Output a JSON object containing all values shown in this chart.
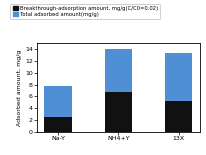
{
  "categories": [
    "Na-Y",
    "NH4+Y",
    "13X"
  ],
  "breakthrough_values": [
    2.5,
    6.8,
    5.3
  ],
  "total_values": [
    7.7,
    14.1,
    13.3
  ],
  "bar_color_breakthrough": "#111111",
  "bar_color_total": "#4f8fd4",
  "legend_label_breakthrough": "Breakthrough-adsorption amount, mg/g(C/C0=0.02)",
  "legend_label_total": "Total adsorbed amount(mg/g)",
  "ylabel": "Adsorbed amount, mg/g",
  "ylim": [
    0,
    15
  ],
  "yticks": [
    0,
    2,
    4,
    6,
    8,
    10,
    12,
    14
  ],
  "legend_fontsize": 3.8,
  "axis_fontsize": 4.5,
  "tick_fontsize": 4.5,
  "bar_width": 0.45,
  "background_color": "#ffffff",
  "figure_width": 2.06,
  "figure_height": 1.55
}
